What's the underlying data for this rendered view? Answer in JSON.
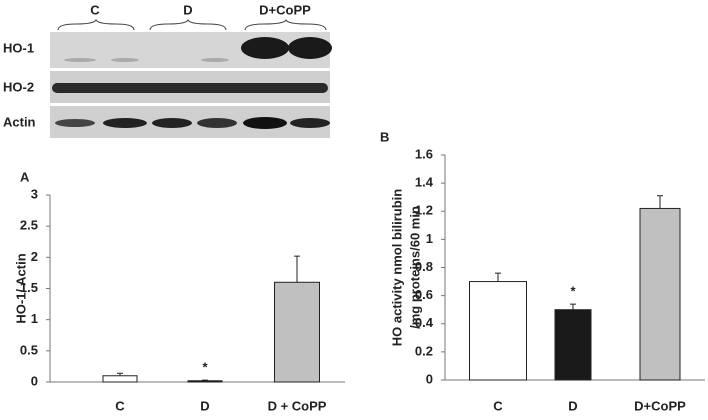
{
  "blot": {
    "lanes": [
      "C",
      "D",
      "D+CoPP"
    ],
    "rows": [
      "HO-1",
      "HO-2",
      "Actin"
    ]
  },
  "chart_data": [
    {
      "type": "bar",
      "panel": "A",
      "y_label": [
        "HO-1/ Actin"
      ],
      "categories": [
        "C",
        "D",
        "D + CoPP"
      ],
      "values": [
        0.1,
        0.02,
        1.6
      ],
      "errors": [
        0.04,
        0.01,
        0.42
      ],
      "colors": [
        "#ffffff",
        "#1a1a1a",
        "#c0c0c0"
      ],
      "marks": [
        null,
        "*",
        null
      ],
      "ylim": [
        0,
        3
      ],
      "yticks": [
        0,
        0.5,
        1,
        1.5,
        2,
        2.5,
        3
      ],
      "grid": false
    },
    {
      "type": "bar",
      "panel": "B",
      "y_label": [
        "HO activity nmol bilirubin",
        "/mg proteins/60 min"
      ],
      "categories": [
        "C",
        "D",
        "D+CoPP"
      ],
      "values": [
        0.7,
        0.5,
        1.22
      ],
      "errors": [
        0.06,
        0.04,
        0.09
      ],
      "colors": [
        "#ffffff",
        "#1a1a1a",
        "#c0c0c0"
      ],
      "marks": [
        null,
        "*",
        null
      ],
      "ylim": [
        0,
        1.6
      ],
      "yticks": [
        0,
        0.2,
        0.4,
        0.6,
        0.8,
        1,
        1.2,
        1.4,
        1.6
      ],
      "grid": false
    }
  ]
}
